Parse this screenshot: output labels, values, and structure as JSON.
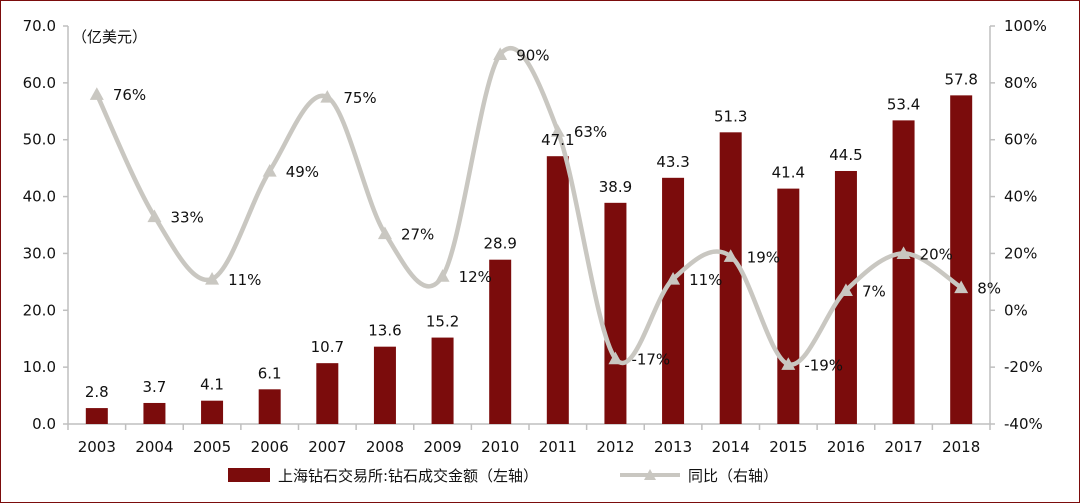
{
  "chart_data": {
    "type": "bar",
    "title": "",
    "ylabel_left": "（亿美元）",
    "categories": [
      "2003",
      "2004",
      "2005",
      "2006",
      "2007",
      "2008",
      "2009",
      "2010",
      "2011",
      "2012",
      "2013",
      "2014",
      "2015",
      "2016",
      "2017",
      "2018"
    ],
    "left_axis": {
      "min": 0,
      "max": 70,
      "step": 10,
      "tick_labels": [
        "0.0",
        "10.0",
        "20.0",
        "30.0",
        "40.0",
        "50.0",
        "60.0",
        "70.0"
      ]
    },
    "right_axis": {
      "min": -40,
      "max": 100,
      "step": 20,
      "tick_labels": [
        "-40%",
        "-20%",
        "0%",
        "20%",
        "40%",
        "60%",
        "80%",
        "100%"
      ]
    },
    "series": [
      {
        "name": "上海钻石交易所:钻石成交金额（左轴）",
        "type": "bar",
        "axis": "left",
        "color": "#7b0c0c",
        "values": [
          2.8,
          3.7,
          4.1,
          6.1,
          10.7,
          13.6,
          15.2,
          28.9,
          47.1,
          38.9,
          43.3,
          51.3,
          41.4,
          44.5,
          53.4,
          57.8
        ],
        "labels": [
          "2.8",
          "3.7",
          "4.1",
          "6.1",
          "10.7",
          "13.6",
          "15.2",
          "28.9",
          "47.1",
          "38.9",
          "43.3",
          "51.3",
          "41.4",
          "44.5",
          "53.4",
          "57.8"
        ]
      },
      {
        "name": "同比（右轴）",
        "type": "line",
        "axis": "right",
        "color": "#c9c7c1",
        "marker": "triangle",
        "smooth": true,
        "values": [
          76,
          33,
          11,
          49,
          75,
          27,
          12,
          90,
          63,
          -17,
          11,
          19,
          -19,
          7,
          20,
          8
        ],
        "labels": [
          "76%",
          "33%",
          "11%",
          "49%",
          "75%",
          "27%",
          "12%",
          "90%",
          "63%",
          "-17%",
          "11%",
          "19%",
          "-19%",
          "7%",
          "20%",
          "8%"
        ]
      }
    ],
    "legend_position": "bottom",
    "grid": false
  },
  "colors": {
    "frame": "#7b0c0c",
    "axis": "#bfbfbf"
  }
}
